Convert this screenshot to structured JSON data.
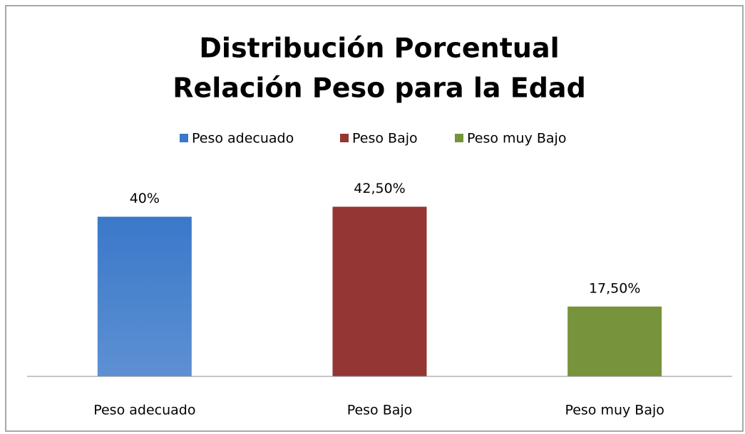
{
  "chart_data": {
    "type": "bar",
    "title": [
      "Distribución Porcentual",
      "Relación Peso para la Edad"
    ],
    "categories": [
      "Peso adecuado",
      "Peso Bajo",
      "Peso muy Bajo"
    ],
    "values": [
      40,
      42.5,
      17.5
    ],
    "value_labels": [
      "40%",
      "42,50%",
      "17,50%"
    ],
    "colors": [
      "#3a78c9",
      "#943634",
      "#77933c"
    ],
    "ylim": [
      0,
      50
    ],
    "legend": "top"
  }
}
